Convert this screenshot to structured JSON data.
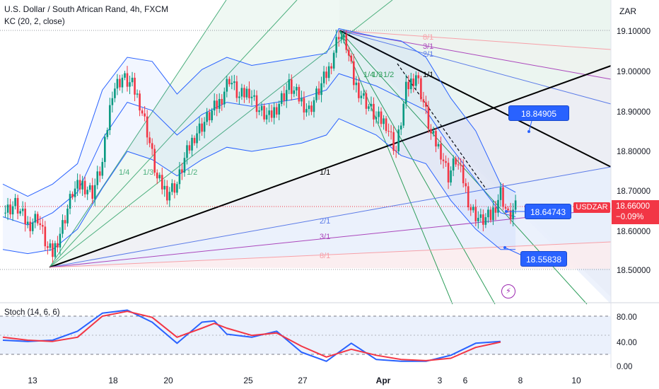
{
  "header": {
    "title": "U.S. Dollar / South African Rand, 4h, FXCM",
    "indicator": "KC (20, 2, close)",
    "currency": "ZAR"
  },
  "stoch": {
    "label": "Stoch (14, 6, 6)"
  },
  "price_axis": {
    "labels": [
      "19.10000",
      "19.00000",
      "18.90000",
      "18.80000",
      "18.70000",
      "18.60000",
      "18.50000"
    ],
    "symbol": "USDZAR",
    "last_price": "18.66000",
    "change": "−0.09%"
  },
  "callouts": [
    "18.84905",
    "18.64743",
    "18.55838"
  ],
  "time_axis": {
    "labels": [
      "13",
      "18",
      "20",
      "25",
      "27",
      "Apr",
      "3",
      "6",
      "8",
      "10"
    ]
  },
  "stoch_axis": {
    "labels": [
      "80.00",
      "40.00",
      "0.00"
    ]
  },
  "fan_labels": {
    "upper": [
      "8/1",
      "3/1",
      "2/1",
      "1/1",
      "1/2",
      "1/4",
      "1/3"
    ],
    "lower": [
      "1/4",
      "1/3",
      "1/2",
      "1/1",
      "2/1",
      "3/1",
      "8/1"
    ]
  },
  "colors": {
    "up": "#089981",
    "down": "#f23645",
    "kc": "#2962ff",
    "stoch_k": "#2962ff",
    "stoch_d": "#f23645",
    "callout": "#2962ff",
    "trendline": "#000000"
  },
  "chart_data": [
    {
      "type": "candlestick",
      "title": "U.S. Dollar / South African Rand, 4h, FXCM",
      "x_ticks": [
        "13",
        "18",
        "20",
        "25",
        "27",
        "Apr",
        "3",
        "6",
        "8",
        "10"
      ],
      "ylim": [
        18.43,
        19.17
      ],
      "y_ticks": [
        18.5,
        18.6,
        18.7,
        18.8,
        18.9,
        19.0,
        19.1
      ],
      "close_path": [
        [
          0,
          18.65
        ],
        [
          5,
          18.67
        ],
        [
          10,
          18.62
        ],
        [
          14,
          18.64
        ],
        [
          18,
          18.56
        ],
        [
          20,
          18.55
        ],
        [
          24,
          18.62
        ],
        [
          28,
          18.7
        ],
        [
          32,
          18.72
        ],
        [
          36,
          18.7
        ],
        [
          40,
          18.77
        ],
        [
          44,
          18.95
        ],
        [
          48,
          18.98
        ],
        [
          52,
          18.96
        ],
        [
          55,
          18.92
        ],
        [
          58,
          18.85
        ],
        [
          62,
          18.73
        ],
        [
          66,
          18.7
        ],
        [
          70,
          18.72
        ],
        [
          73,
          18.78
        ],
        [
          77,
          18.84
        ],
        [
          82,
          18.88
        ],
        [
          87,
          18.92
        ],
        [
          91,
          18.98
        ],
        [
          95,
          18.93
        ],
        [
          99,
          18.95
        ],
        [
          103,
          18.9
        ],
        [
          107,
          18.88
        ],
        [
          111,
          18.92
        ],
        [
          115,
          18.96
        ],
        [
          119,
          18.93
        ],
        [
          123,
          18.9
        ],
        [
          127,
          18.95
        ],
        [
          131,
          19.0
        ],
        [
          135,
          19.09
        ],
        [
          138,
          19.06
        ],
        [
          141,
          18.97
        ],
        [
          146,
          18.92
        ],
        [
          150,
          18.88
        ],
        [
          154,
          18.87
        ],
        [
          158,
          18.8
        ],
        [
          162,
          18.95
        ],
        [
          166,
          18.99
        ],
        [
          169,
          18.92
        ],
        [
          172,
          18.84
        ],
        [
          176,
          18.8
        ],
        [
          179,
          18.74
        ],
        [
          182,
          18.78
        ],
        [
          185,
          18.73
        ],
        [
          188,
          18.66
        ],
        [
          192,
          18.63
        ],
        [
          196,
          18.64
        ],
        [
          200,
          18.7
        ],
        [
          203,
          18.64
        ],
        [
          206,
          18.66
        ]
      ],
      "series": [
        {
          "name": "KC",
          "values": [
            [
              0,
              18.72
            ],
            [
              10,
              18.69
            ],
            [
              20,
              18.72
            ],
            [
              30,
              18.77
            ],
            [
              40,
              18.95
            ],
            [
              50,
              19.03
            ],
            [
              60,
              19.02
            ],
            [
              70,
              18.94
            ],
            [
              80,
              19.0
            ],
            [
              90,
              19.03
            ],
            [
              100,
              19.01
            ],
            [
              110,
              19.02
            ],
            [
              120,
              19.03
            ],
            [
              130,
              19.04
            ],
            [
              135,
              19.1
            ],
            [
              150,
              19.08
            ],
            [
              160,
              19.07
            ],
            [
              170,
              19.03
            ],
            [
              180,
              18.93
            ],
            [
              190,
              18.85
            ],
            [
              200,
              18.72
            ],
            [
              206,
              18.7
            ]
          ]
        },
        {
          "name": "KC",
          "values": [
            [
              0,
              18.64
            ],
            [
              10,
              18.62
            ],
            [
              20,
              18.65
            ],
            [
              30,
              18.7
            ],
            [
              40,
              18.83
            ],
            [
              50,
              18.92
            ],
            [
              60,
              18.9
            ],
            [
              70,
              18.84
            ],
            [
              80,
              18.89
            ],
            [
              90,
              18.92
            ],
            [
              100,
              18.91
            ],
            [
              110,
              18.92
            ],
            [
              120,
              18.93
            ],
            [
              130,
              18.95
            ],
            [
              135,
              18.99
            ],
            [
              150,
              18.96
            ],
            [
              160,
              18.93
            ],
            [
              170,
              18.9
            ],
            [
              180,
              18.81
            ],
            [
              190,
              18.73
            ],
            [
              200,
              18.65
            ],
            [
              206,
              18.64
            ]
          ]
        },
        {
          "name": "KC",
          "values": [
            [
              0,
              18.56
            ],
            [
              10,
              18.55
            ],
            [
              20,
              18.56
            ],
            [
              30,
              18.61
            ],
            [
              40,
              18.71
            ],
            [
              50,
              18.8
            ],
            [
              60,
              18.78
            ],
            [
              70,
              18.74
            ],
            [
              80,
              18.78
            ],
            [
              90,
              18.81
            ],
            [
              100,
              18.8
            ],
            [
              110,
              18.81
            ],
            [
              120,
              18.82
            ],
            [
              130,
              18.84
            ],
            [
              135,
              18.88
            ],
            [
              150,
              18.84
            ],
            [
              160,
              18.79
            ],
            [
              170,
              18.77
            ],
            [
              180,
              18.68
            ],
            [
              190,
              18.61
            ],
            [
              200,
              18.56
            ],
            [
              206,
              18.56
            ]
          ]
        },
        {
          "name": "Stoch",
          "values": [
            [
              0,
              40
            ],
            [
              10,
              38
            ],
            [
              20,
              40
            ],
            [
              30,
              55
            ],
            [
              40,
              85
            ],
            [
              50,
              90
            ],
            [
              60,
              70
            ],
            [
              70,
              35
            ],
            [
              80,
              70
            ],
            [
              85,
              72
            ],
            [
              90,
              50
            ],
            [
              100,
              45
            ],
            [
              110,
              55
            ],
            [
              120,
              20
            ],
            [
              130,
              5
            ],
            [
              140,
              35
            ],
            [
              150,
              8
            ],
            [
              160,
              5
            ],
            [
              170,
              5
            ],
            [
              180,
              15
            ],
            [
              190,
              35
            ],
            [
              200,
              38
            ]
          ]
        },
        {
          "name": "Stoch",
          "values": [
            [
              0,
              45
            ],
            [
              10,
              40
            ],
            [
              20,
              38
            ],
            [
              30,
              45
            ],
            [
              40,
              80
            ],
            [
              50,
              88
            ],
            [
              60,
              78
            ],
            [
              70,
              45
            ],
            [
              80,
              60
            ],
            [
              85,
              68
            ],
            [
              90,
              60
            ],
            [
              100,
              48
            ],
            [
              110,
              52
            ],
            [
              120,
              30
            ],
            [
              130,
              12
            ],
            [
              140,
              25
            ],
            [
              150,
              15
            ],
            [
              160,
              8
            ],
            [
              170,
              6
            ],
            [
              180,
              10
            ],
            [
              190,
              28
            ],
            [
              200,
              37
            ]
          ]
        }
      ]
    }
  ]
}
